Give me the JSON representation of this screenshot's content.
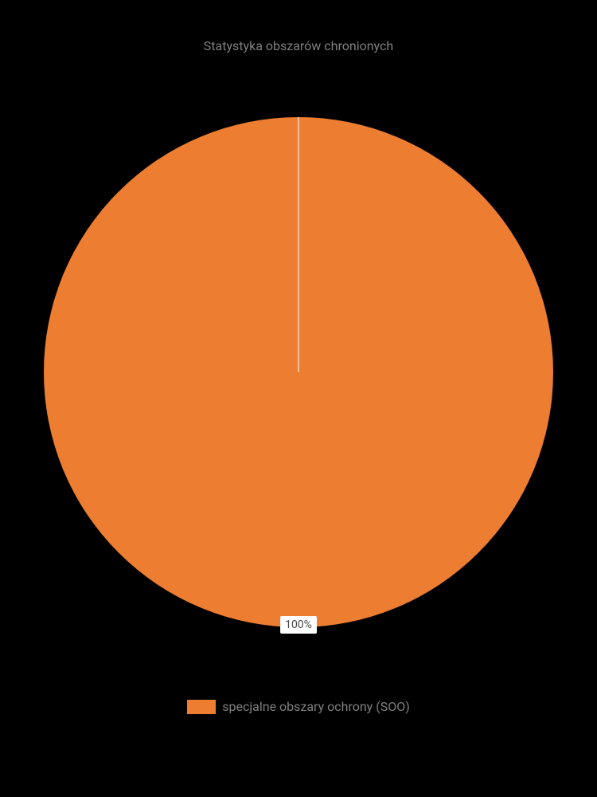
{
  "chart": {
    "type": "pie",
    "title": "Statystyka obszarów chronionych",
    "title_fontsize": 16,
    "title_color": "#808080",
    "background_color": "#000000",
    "slices": [
      {
        "label": "specjalne obszary ochrony (SOO)",
        "value": 100,
        "percentage_text": "100%",
        "color": "#ed7d31"
      }
    ],
    "radius_line_color": "#ffffff",
    "data_label": {
      "background_color": "#ffffff",
      "text_color": "#4a4a4a",
      "fontsize": 14
    },
    "legend": {
      "position": "bottom",
      "label_color": "#808080",
      "label_fontsize": 16,
      "swatch_width": 36,
      "swatch_height": 18
    }
  }
}
